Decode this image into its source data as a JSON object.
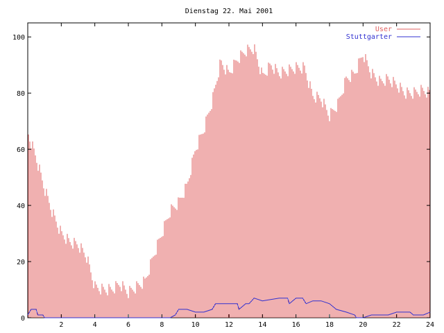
{
  "chart_data": {
    "type": "bar",
    "title": "Dienstag 22. Mai 2001",
    "xlabel": "",
    "ylabel": "",
    "xlim": [
      0,
      24
    ],
    "ylim": [
      0,
      105
    ],
    "x_ticks": [
      2,
      4,
      6,
      8,
      10,
      12,
      14,
      16,
      18,
      20,
      22,
      24
    ],
    "y_ticks": [
      0,
      20,
      40,
      60,
      80,
      100
    ],
    "grid": false,
    "legend_position": "top-right",
    "series": [
      {
        "name": "User",
        "style": "impulses",
        "color": "#e06060",
        "x": [
          0.0,
          0.5,
          1.0,
          1.5,
          2.0,
          2.5,
          3.0,
          3.5,
          4.0,
          4.5,
          5.0,
          5.5,
          6.0,
          6.5,
          7.0,
          7.5,
          8.0,
          8.5,
          9.0,
          9.5,
          10.0,
          10.5,
          11.0,
          11.5,
          12.0,
          12.5,
          13.0,
          13.5,
          14.0,
          14.5,
          15.0,
          15.5,
          16.0,
          16.5,
          17.0,
          17.5,
          18.0,
          18.5,
          19.0,
          19.5,
          20.0,
          20.5,
          21.0,
          21.5,
          22.0,
          22.5,
          23.0,
          23.5,
          24.0
        ],
        "y": [
          66,
          57,
          46,
          37,
          30,
          27,
          26,
          22,
          11,
          10,
          10,
          12,
          9,
          11,
          13,
          22,
          30,
          38,
          41,
          47,
          60,
          67,
          77,
          91,
          87,
          92,
          95,
          96,
          86,
          90,
          87,
          88,
          89,
          89,
          79,
          78,
          72,
          76,
          85,
          87,
          94,
          87,
          84,
          85,
          83,
          80,
          80,
          81,
          80
        ]
      },
      {
        "name": "Stuttgarter",
        "style": "line",
        "color": "#3030d0",
        "x": [
          0.0,
          0.2,
          0.5,
          0.6,
          0.9,
          1.0,
          8.5,
          8.8,
          9.0,
          9.5,
          10.0,
          10.5,
          11.0,
          11.2,
          12.0,
          12.5,
          12.6,
          13.0,
          13.2,
          13.5,
          14.0,
          15.0,
          15.5,
          15.6,
          16.0,
          16.4,
          16.6,
          17.0,
          17.5,
          18.0,
          18.4,
          19.0,
          19.5,
          19.6,
          20.0,
          20.5,
          21.0,
          21.5,
          22.0,
          22.8,
          23.0,
          23.6,
          24.0
        ],
        "y": [
          1,
          3,
          3,
          1,
          1,
          0,
          0,
          1,
          3,
          3,
          2,
          2,
          3,
          5,
          5,
          5,
          3,
          5,
          5,
          7,
          6,
          7,
          7,
          5,
          7,
          7,
          5,
          6,
          6,
          5,
          3,
          2,
          1,
          0,
          0,
          1,
          1,
          1,
          2,
          2,
          1,
          1,
          2
        ]
      }
    ]
  }
}
